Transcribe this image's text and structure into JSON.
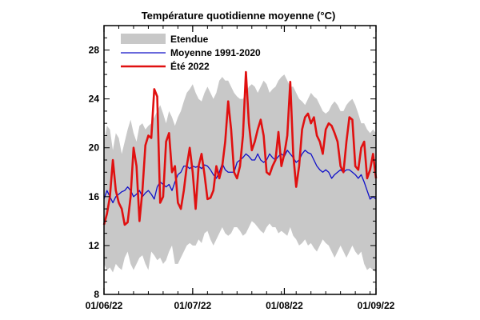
{
  "chart_data": {
    "type": "line",
    "title": "Température quotidienne moyenne (°C)",
    "xlabel": "",
    "ylabel": "",
    "ylim": [
      8,
      30
    ],
    "xlim": [
      "2022-06-01",
      "2022-09-01"
    ],
    "y_ticks": [
      8,
      12,
      16,
      20,
      24,
      28
    ],
    "x_ticks": [
      {
        "date": "2022-06-01",
        "label": "01/06/22"
      },
      {
        "date": "2022-07-01",
        "label": "01/07/22"
      },
      {
        "date": "2022-08-01",
        "label": "01/08/22"
      },
      {
        "date": "2022-09-01",
        "label": "01/09/22"
      }
    ],
    "grid": false,
    "legend": "top-left",
    "x": [
      "2022-06-01",
      "2022-06-02",
      "2022-06-03",
      "2022-06-04",
      "2022-06-05",
      "2022-06-06",
      "2022-06-07",
      "2022-06-08",
      "2022-06-09",
      "2022-06-10",
      "2022-06-11",
      "2022-06-12",
      "2022-06-13",
      "2022-06-14",
      "2022-06-15",
      "2022-06-16",
      "2022-06-17",
      "2022-06-18",
      "2022-06-19",
      "2022-06-20",
      "2022-06-21",
      "2022-06-22",
      "2022-06-23",
      "2022-06-24",
      "2022-06-25",
      "2022-06-26",
      "2022-06-27",
      "2022-06-28",
      "2022-06-29",
      "2022-06-30",
      "2022-07-01",
      "2022-07-02",
      "2022-07-03",
      "2022-07-04",
      "2022-07-05",
      "2022-07-06",
      "2022-07-07",
      "2022-07-08",
      "2022-07-09",
      "2022-07-10",
      "2022-07-11",
      "2022-07-12",
      "2022-07-13",
      "2022-07-14",
      "2022-07-15",
      "2022-07-16",
      "2022-07-17",
      "2022-07-18",
      "2022-07-19",
      "2022-07-20",
      "2022-07-21",
      "2022-07-22",
      "2022-07-23",
      "2022-07-24",
      "2022-07-25",
      "2022-07-26",
      "2022-07-27",
      "2022-07-28",
      "2022-07-29",
      "2022-07-30",
      "2022-07-31",
      "2022-08-01",
      "2022-08-02",
      "2022-08-03",
      "2022-08-04",
      "2022-08-05",
      "2022-08-06",
      "2022-08-07",
      "2022-08-08",
      "2022-08-09",
      "2022-08-10",
      "2022-08-11",
      "2022-08-12",
      "2022-08-13",
      "2022-08-14",
      "2022-08-15",
      "2022-08-16",
      "2022-08-17",
      "2022-08-18",
      "2022-08-19",
      "2022-08-20",
      "2022-08-21",
      "2022-08-22",
      "2022-08-23",
      "2022-08-24",
      "2022-08-25",
      "2022-08-26",
      "2022-08-27",
      "2022-08-28",
      "2022-08-29",
      "2022-08-30",
      "2022-08-31",
      "2022-09-01"
    ],
    "series": [
      {
        "name": "Etendue",
        "kind": "band",
        "color": "#c8c8c8",
        "upper": [
          20.5,
          21.8,
          21.5,
          19.8,
          21.2,
          20.8,
          19.5,
          20.5,
          21.5,
          22.3,
          21.2,
          20.5,
          21.8,
          22.0,
          21.5,
          21.8,
          22.0,
          22.5,
          23.0,
          23.5,
          22.8,
          22.0,
          23.0,
          22.5,
          21.8,
          22.5,
          23.0,
          23.8,
          24.5,
          24.8,
          25.2,
          24.5,
          24.0,
          23.8,
          24.5,
          25.0,
          24.5,
          24.0,
          24.5,
          25.5,
          25.8,
          25.5,
          25.5,
          25.0,
          24.5,
          24.2,
          24.0,
          24.0,
          24.5,
          25.0,
          25.2,
          25.0,
          24.5,
          25.0,
          25.5,
          25.2,
          24.5,
          24.8,
          25.0,
          25.5,
          25.8,
          26.0,
          25.5,
          25.0,
          25.0,
          24.5,
          24.0,
          23.8,
          23.5,
          24.0,
          24.5,
          24.2,
          24.0,
          23.5,
          23.0,
          22.8,
          23.0,
          23.5,
          23.8,
          23.5,
          23.0,
          23.0,
          23.5,
          23.8,
          24.0,
          23.5,
          22.8,
          22.0,
          22.0,
          21.5,
          21.2,
          21.5,
          21.2
        ],
        "lower": [
          10.5,
          10.0,
          10.2,
          9.8,
          10.5,
          10.2,
          10.0,
          11.0,
          11.5,
          10.5,
          10.0,
          10.5,
          11.0,
          11.2,
          10.5,
          10.0,
          11.5,
          11.2,
          10.8,
          11.0,
          10.5,
          10.8,
          11.5,
          12.0,
          10.5,
          10.5,
          11.0,
          11.5,
          12.0,
          12.2,
          12.0,
          12.0,
          12.5,
          12.2,
          13.0,
          13.2,
          12.5,
          12.0,
          12.5,
          13.0,
          13.5,
          13.0,
          12.8,
          13.0,
          13.5,
          13.5,
          13.2,
          12.8,
          13.0,
          13.5,
          14.0,
          13.8,
          13.5,
          13.2,
          13.0,
          13.5,
          13.8,
          13.5,
          13.5,
          13.0,
          13.2,
          13.0,
          12.8,
          13.5,
          12.8,
          12.5,
          12.0,
          12.2,
          12.5,
          12.0,
          12.2,
          11.8,
          11.5,
          12.0,
          12.5,
          12.2,
          12.0,
          11.5,
          11.0,
          11.5,
          12.0,
          11.5,
          11.0,
          11.5,
          12.0,
          11.5,
          11.2,
          11.5,
          10.5,
          10.0,
          10.2,
          10.0,
          9.8
        ]
      },
      {
        "name": "Moyenne 1991-2020",
        "kind": "line",
        "color": "#1010c8",
        "values": [
          15.8,
          16.5,
          16.0,
          15.5,
          16.0,
          16.2,
          16.4,
          16.5,
          16.8,
          16.5,
          16.0,
          16.2,
          16.5,
          16.0,
          16.3,
          16.5,
          16.2,
          15.8,
          16.8,
          17.2,
          17.0,
          16.8,
          17.0,
          16.5,
          17.2,
          17.8,
          18.0,
          18.5,
          18.5,
          18.3,
          18.5,
          18.4,
          18.5,
          18.3,
          18.6,
          18.5,
          18.2,
          17.8,
          17.5,
          18.0,
          18.7,
          18.2,
          18.0,
          18.0,
          18.0,
          18.8,
          19.0,
          19.2,
          19.5,
          19.3,
          19.0,
          19.0,
          19.5,
          19.0,
          18.8,
          19.0,
          19.5,
          19.2,
          19.0,
          19.3,
          19.5,
          19.3,
          19.8,
          19.5,
          19.2,
          18.8,
          19.0,
          19.5,
          19.8,
          19.6,
          19.5,
          19.0,
          18.5,
          18.2,
          18.0,
          18.2,
          18.0,
          17.5,
          17.8,
          18.0,
          18.2,
          18.0,
          18.2,
          18.2,
          18.0,
          17.8,
          17.5,
          17.8,
          17.2,
          16.5,
          15.8,
          16.0,
          15.8
        ]
      },
      {
        "name": "Été 2022",
        "kind": "line",
        "color": "#e01010",
        "values": [
          13.7,
          14.6,
          16.0,
          19.0,
          16.5,
          15.5,
          15.0,
          13.7,
          13.9,
          16.0,
          20.0,
          18.5,
          14.0,
          16.5,
          20.2,
          21.0,
          20.8,
          24.8,
          24.2,
          15.5,
          16.0,
          20.5,
          21.2,
          18.0,
          18.5,
          15.5,
          15.0,
          16.5,
          18.5,
          20.0,
          18.0,
          15.0,
          18.5,
          19.5,
          17.8,
          15.8,
          15.9,
          16.5,
          18.5,
          17.5,
          18.5,
          20.5,
          23.8,
          21.5,
          18.0,
          17.5,
          18.5,
          21.0,
          26.2,
          22.0,
          19.8,
          20.5,
          21.5,
          22.3,
          21.0,
          18.0,
          17.8,
          18.5,
          19.0,
          21.3,
          18.5,
          19.5,
          21.0,
          25.4,
          19.5,
          16.8,
          18.5,
          21.5,
          22.5,
          22.8,
          22.0,
          22.5,
          21.0,
          20.5,
          19.5,
          21.5,
          22.0,
          21.8,
          21.2,
          20.5,
          18.5,
          18.0,
          20.5,
          22.5,
          22.3,
          18.5,
          18.2,
          20.0,
          20.5,
          17.5,
          18.2,
          19.5,
          17.5
        ]
      }
    ]
  }
}
